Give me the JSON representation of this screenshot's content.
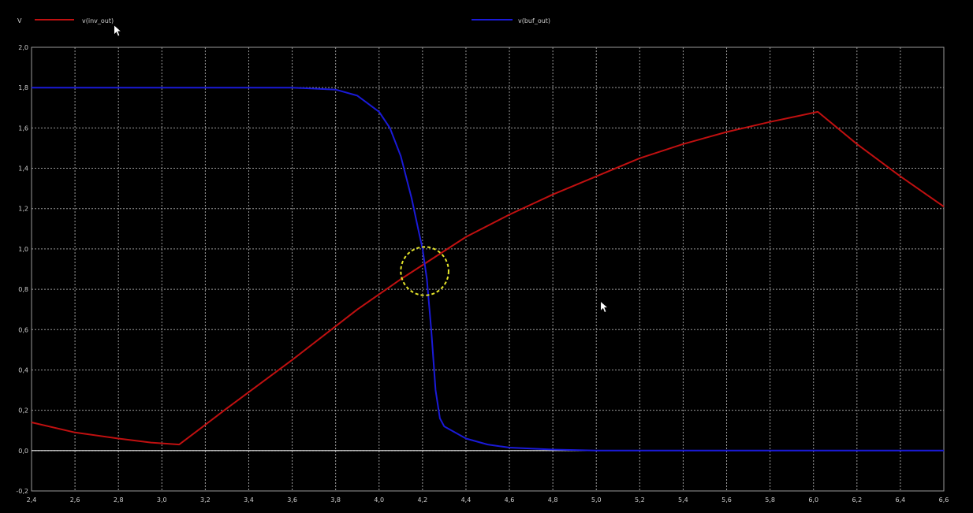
{
  "chart_data": {
    "type": "line",
    "ylabel": "V",
    "xlim": [
      2.4,
      6.6
    ],
    "ylim": [
      -0.2,
      2.0
    ],
    "x_ticks": [
      "2,4",
      "2,6",
      "2,8",
      "3,0",
      "3,2",
      "3,4",
      "3,6",
      "3,8",
      "4,0",
      "4,2",
      "4,4",
      "4,6",
      "4,8",
      "5,0",
      "5,2",
      "5,4",
      "5,6",
      "5,8",
      "6,0",
      "6,2",
      "6,4",
      "6,6"
    ],
    "y_ticks": [
      "-0,2",
      "0,0",
      "0,2",
      "0,4",
      "0,6",
      "0,8",
      "1,0",
      "1,2",
      "1,4",
      "1,6",
      "1,8",
      "2,0"
    ],
    "grid": true,
    "legend_placement": "top",
    "series": [
      {
        "name": "v(inv_out)",
        "color": "#c01010",
        "points": [
          [
            2.4,
            0.14
          ],
          [
            2.6,
            0.09
          ],
          [
            2.8,
            0.06
          ],
          [
            2.95,
            0.04
          ],
          [
            3.08,
            0.03
          ],
          [
            3.3,
            0.21
          ],
          [
            3.6,
            0.45
          ],
          [
            3.9,
            0.7
          ],
          [
            4.1,
            0.85
          ],
          [
            4.2,
            0.92
          ],
          [
            4.4,
            1.06
          ],
          [
            4.6,
            1.17
          ],
          [
            4.8,
            1.27
          ],
          [
            5.0,
            1.36
          ],
          [
            5.2,
            1.45
          ],
          [
            5.4,
            1.52
          ],
          [
            5.6,
            1.58
          ],
          [
            5.8,
            1.63
          ],
          [
            6.02,
            1.68
          ],
          [
            6.2,
            1.52
          ],
          [
            6.4,
            1.36
          ],
          [
            6.6,
            1.21
          ]
        ]
      },
      {
        "name": "v(buf_out)",
        "color": "#1a1ad8",
        "points": [
          [
            2.4,
            1.8
          ],
          [
            3.6,
            1.8
          ],
          [
            3.8,
            1.79
          ],
          [
            3.9,
            1.76
          ],
          [
            4.0,
            1.68
          ],
          [
            4.05,
            1.6
          ],
          [
            4.1,
            1.46
          ],
          [
            4.15,
            1.25
          ],
          [
            4.18,
            1.1
          ],
          [
            4.2,
            1.0
          ],
          [
            4.22,
            0.85
          ],
          [
            4.24,
            0.6
          ],
          [
            4.26,
            0.3
          ],
          [
            4.28,
            0.16
          ],
          [
            4.3,
            0.12
          ],
          [
            4.4,
            0.06
          ],
          [
            4.5,
            0.03
          ],
          [
            4.6,
            0.015
          ],
          [
            4.8,
            0.005
          ],
          [
            5.0,
            0.0
          ],
          [
            6.6,
            0.0
          ]
        ]
      },
      {
        "name": "",
        "color": "#e8e8e8",
        "points": [
          [
            2.4,
            0.0
          ],
          [
            6.6,
            0.0
          ]
        ]
      }
    ],
    "annotations": [
      {
        "type": "circle",
        "shape": "dashed",
        "color": "#e6e62a",
        "center": [
          4.21,
          0.89
        ],
        "radius_x": 0.11,
        "radius_y": 0.12
      }
    ]
  },
  "cursors": [
    {
      "name": "mouse-cursor-legend",
      "icon": "arrow-cursor",
      "x_data": 2.78,
      "y_data": 2.11
    },
    {
      "name": "mouse-cursor-plot",
      "icon": "arrow-cursor",
      "x_data": 5.02,
      "y_data": 0.74
    }
  ]
}
